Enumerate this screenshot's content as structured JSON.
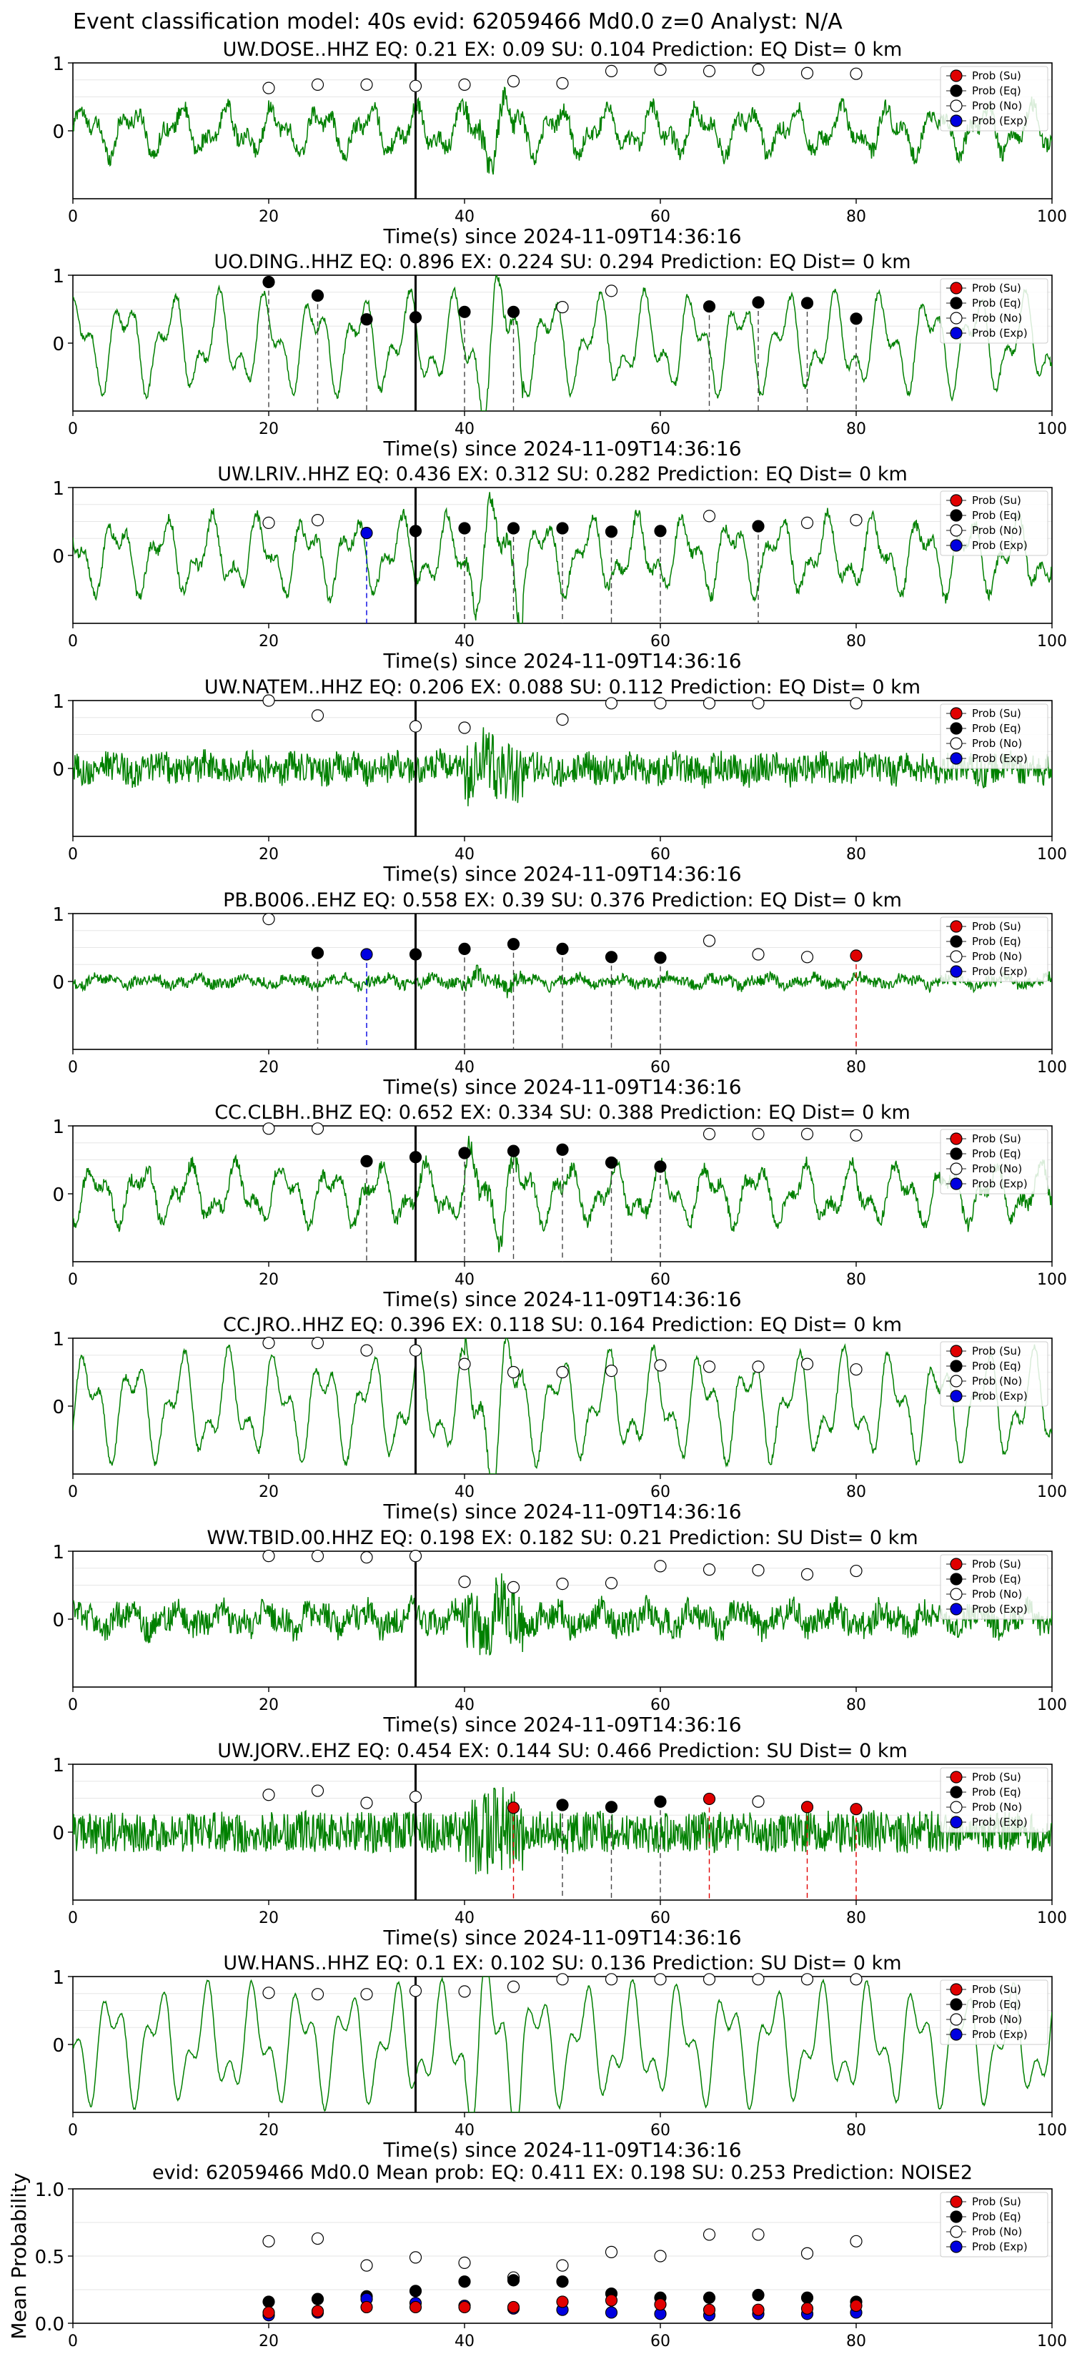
{
  "figure_title": "Event classification model: 40s evid: 62059466 Md0.0 z=0 Analyst: N/A",
  "legend_labels": [
    "Prob (Su)",
    "Prob (Eq)",
    "Prob (No)",
    "Prob (Exp)"
  ],
  "colors": {
    "su": "#e00000",
    "eq": "#000000",
    "no": "#ffffff",
    "exp": "#0000e0",
    "waveform": "#008000",
    "grid": "#e6e6e6"
  },
  "chart_data": [
    {
      "type": "line",
      "station": "UW.DOSE..HHZ",
      "title": "UW.DOSE..HHZ   EQ: 0.21  EX: 0.09  SU: 0.104   Prediction: EQ    Dist= 0 km",
      "xlabel": "Time(s) since 2024-11-09T14:36:16",
      "xlim": [
        0,
        100
      ],
      "ylim": [
        -1,
        1
      ],
      "x_ticks": [
        "0",
        "20",
        "40",
        "60",
        "80",
        "100"
      ],
      "y_ticks": [
        "1",
        "0"
      ],
      "arrival_line_x": 35,
      "noise": 0.12,
      "wave_amp": 0.25,
      "points": [
        {
          "x": 20,
          "y": 0.63,
          "class": "no"
        },
        {
          "x": 25,
          "y": 0.68,
          "class": "no"
        },
        {
          "x": 30,
          "y": 0.68,
          "class": "no"
        },
        {
          "x": 35,
          "y": 0.66,
          "class": "no"
        },
        {
          "x": 40,
          "y": 0.68,
          "class": "no"
        },
        {
          "x": 45,
          "y": 0.73,
          "class": "no"
        },
        {
          "x": 50,
          "y": 0.7,
          "class": "no"
        },
        {
          "x": 55,
          "y": 0.88,
          "class": "no"
        },
        {
          "x": 60,
          "y": 0.9,
          "class": "no"
        },
        {
          "x": 65,
          "y": 0.88,
          "class": "no"
        },
        {
          "x": 70,
          "y": 0.9,
          "class": "no"
        },
        {
          "x": 75,
          "y": 0.85,
          "class": "no"
        },
        {
          "x": 80,
          "y": 0.84,
          "class": "no"
        }
      ]
    },
    {
      "type": "line",
      "station": "UO.DING..HHZ",
      "title": "UO.DING..HHZ   EQ: 0.896  EX: 0.224  SU: 0.294   Prediction: EQ    Dist= 0 km",
      "xlabel": "Time(s) since 2024-11-09T14:36:16",
      "xlim": [
        0,
        100
      ],
      "ylim": [
        -1,
        1
      ],
      "x_ticks": [
        "0",
        "20",
        "40",
        "60",
        "80",
        "100"
      ],
      "y_ticks": [
        "1",
        "0"
      ],
      "arrival_line_x": 35,
      "noise": 0.05,
      "wave_amp": 0.5,
      "points": [
        {
          "x": 20,
          "y": 0.9,
          "class": "eq"
        },
        {
          "x": 25,
          "y": 0.7,
          "class": "eq"
        },
        {
          "x": 30,
          "y": 0.35,
          "class": "eq"
        },
        {
          "x": 35,
          "y": 0.38,
          "class": "eq"
        },
        {
          "x": 40,
          "y": 0.46,
          "class": "eq"
        },
        {
          "x": 45,
          "y": 0.46,
          "class": "eq"
        },
        {
          "x": 50,
          "y": 0.53,
          "class": "no"
        },
        {
          "x": 55,
          "y": 0.77,
          "class": "no"
        },
        {
          "x": 65,
          "y": 0.54,
          "class": "eq"
        },
        {
          "x": 70,
          "y": 0.6,
          "class": "eq"
        },
        {
          "x": 75,
          "y": 0.59,
          "class": "eq"
        },
        {
          "x": 80,
          "y": 0.36,
          "class": "eq"
        }
      ]
    },
    {
      "type": "line",
      "station": "UW.LRIV..HHZ",
      "title": "UW.LRIV..HHZ   EQ: 0.436  EX: 0.312  SU: 0.282   Prediction: EQ    Dist= 0 km",
      "xlabel": "Time(s) since 2024-11-09T14:36:16",
      "xlim": [
        0,
        100
      ],
      "ylim": [
        -1,
        1
      ],
      "x_ticks": [
        "0",
        "20",
        "40",
        "60",
        "80",
        "100"
      ],
      "y_ticks": [
        "1",
        "0"
      ],
      "arrival_line_x": 35,
      "noise": 0.08,
      "wave_amp": 0.4,
      "points": [
        {
          "x": 20,
          "y": 0.48,
          "class": "no"
        },
        {
          "x": 25,
          "y": 0.52,
          "class": "no"
        },
        {
          "x": 30,
          "y": 0.33,
          "class": "exp"
        },
        {
          "x": 35,
          "y": 0.36,
          "class": "eq"
        },
        {
          "x": 40,
          "y": 0.4,
          "class": "eq"
        },
        {
          "x": 45,
          "y": 0.4,
          "class": "eq"
        },
        {
          "x": 50,
          "y": 0.4,
          "class": "eq"
        },
        {
          "x": 55,
          "y": 0.35,
          "class": "eq"
        },
        {
          "x": 60,
          "y": 0.36,
          "class": "eq"
        },
        {
          "x": 65,
          "y": 0.58,
          "class": "no"
        },
        {
          "x": 70,
          "y": 0.43,
          "class": "eq"
        },
        {
          "x": 75,
          "y": 0.48,
          "class": "no"
        },
        {
          "x": 80,
          "y": 0.52,
          "class": "no"
        }
      ]
    },
    {
      "type": "line",
      "station": "UW.NATEM..HHZ",
      "title": "UW.NATEM..HHZ   EQ: 0.206  EX: 0.088  SU: 0.112   Prediction: EQ    Dist= 0 km",
      "xlabel": "Time(s) since 2024-11-09T14:36:16",
      "xlim": [
        0,
        100
      ],
      "ylim": [
        -1,
        1
      ],
      "x_ticks": [
        "0",
        "20",
        "40",
        "60",
        "80",
        "100"
      ],
      "y_ticks": [
        "1",
        "0"
      ],
      "arrival_line_x": 35,
      "noise": 0.22,
      "wave_amp": 0.05,
      "points": [
        {
          "x": 20,
          "y": 1.0,
          "class": "no"
        },
        {
          "x": 25,
          "y": 0.78,
          "class": "no"
        },
        {
          "x": 35,
          "y": 0.62,
          "class": "no"
        },
        {
          "x": 40,
          "y": 0.6,
          "class": "no"
        },
        {
          "x": 50,
          "y": 0.72,
          "class": "no"
        },
        {
          "x": 55,
          "y": 0.96,
          "class": "no"
        },
        {
          "x": 60,
          "y": 0.96,
          "class": "no"
        },
        {
          "x": 65,
          "y": 0.96,
          "class": "no"
        },
        {
          "x": 70,
          "y": 0.96,
          "class": "no"
        },
        {
          "x": 80,
          "y": 0.96,
          "class": "no"
        }
      ]
    },
    {
      "type": "line",
      "station": "PB.B006..EHZ",
      "title": "PB.B006..EHZ   EQ: 0.558  EX: 0.39  SU: 0.376   Prediction: EQ    Dist= 0 km",
      "xlabel": "Time(s) since 2024-11-09T14:36:16",
      "xlim": [
        0,
        100
      ],
      "ylim": [
        -1,
        1
      ],
      "x_ticks": [
        "0",
        "20",
        "40",
        "60",
        "80",
        "100"
      ],
      "y_ticks": [
        "1",
        "0"
      ],
      "arrival_line_x": 35,
      "noise": 0.08,
      "wave_amp": 0.05,
      "points": [
        {
          "x": 20,
          "y": 0.92,
          "class": "no"
        },
        {
          "x": 25,
          "y": 0.42,
          "class": "eq"
        },
        {
          "x": 30,
          "y": 0.4,
          "class": "exp"
        },
        {
          "x": 35,
          "y": 0.4,
          "class": "eq"
        },
        {
          "x": 40,
          "y": 0.48,
          "class": "eq"
        },
        {
          "x": 45,
          "y": 0.55,
          "class": "eq"
        },
        {
          "x": 50,
          "y": 0.48,
          "class": "eq"
        },
        {
          "x": 55,
          "y": 0.36,
          "class": "eq"
        },
        {
          "x": 60,
          "y": 0.35,
          "class": "eq"
        },
        {
          "x": 65,
          "y": 0.6,
          "class": "no"
        },
        {
          "x": 70,
          "y": 0.4,
          "class": "no"
        },
        {
          "x": 75,
          "y": 0.36,
          "class": "no"
        },
        {
          "x": 80,
          "y": 0.38,
          "class": "su"
        }
      ]
    },
    {
      "type": "line",
      "station": "CC.CLBH..BHZ",
      "title": "CC.CLBH..BHZ   EQ: 0.652  EX: 0.334  SU: 0.388   Prediction: EQ    Dist= 0 km",
      "xlabel": "Time(s) since 2024-11-09T14:36:16",
      "xlim": [
        0,
        100
      ],
      "ylim": [
        -1,
        1
      ],
      "x_ticks": [
        "0",
        "20",
        "40",
        "60",
        "80",
        "100"
      ],
      "y_ticks": [
        "1",
        "0"
      ],
      "arrival_line_x": 35,
      "noise": 0.1,
      "wave_amp": 0.3,
      "points": [
        {
          "x": 20,
          "y": 0.96,
          "class": "no"
        },
        {
          "x": 25,
          "y": 0.96,
          "class": "no"
        },
        {
          "x": 30,
          "y": 0.48,
          "class": "eq"
        },
        {
          "x": 35,
          "y": 0.54,
          "class": "eq"
        },
        {
          "x": 40,
          "y": 0.6,
          "class": "eq"
        },
        {
          "x": 45,
          "y": 0.63,
          "class": "eq"
        },
        {
          "x": 50,
          "y": 0.65,
          "class": "eq"
        },
        {
          "x": 55,
          "y": 0.46,
          "class": "eq"
        },
        {
          "x": 60,
          "y": 0.4,
          "class": "eq"
        },
        {
          "x": 65,
          "y": 0.88,
          "class": "no"
        },
        {
          "x": 70,
          "y": 0.88,
          "class": "no"
        },
        {
          "x": 75,
          "y": 0.88,
          "class": "no"
        },
        {
          "x": 80,
          "y": 0.86,
          "class": "no"
        }
      ]
    },
    {
      "type": "line",
      "station": "CC.JRO..HHZ",
      "title": "CC.JRO..HHZ   EQ: 0.396  EX: 0.118  SU: 0.164   Prediction: EQ    Dist= 0 km",
      "xlabel": "Time(s) since 2024-11-09T14:36:16",
      "xlim": [
        0,
        100
      ],
      "ylim": [
        -1,
        1
      ],
      "x_ticks": [
        "0",
        "20",
        "40",
        "60",
        "80",
        "100"
      ],
      "y_ticks": [
        "1",
        "0"
      ],
      "arrival_line_x": 35,
      "noise": 0.05,
      "wave_amp": 0.55,
      "points": [
        {
          "x": 20,
          "y": 0.93,
          "class": "no"
        },
        {
          "x": 25,
          "y": 0.93,
          "class": "no"
        },
        {
          "x": 30,
          "y": 0.82,
          "class": "no"
        },
        {
          "x": 35,
          "y": 0.82,
          "class": "no"
        },
        {
          "x": 40,
          "y": 0.62,
          "class": "no"
        },
        {
          "x": 45,
          "y": 0.5,
          "class": "no"
        },
        {
          "x": 50,
          "y": 0.5,
          "class": "no"
        },
        {
          "x": 55,
          "y": 0.52,
          "class": "no"
        },
        {
          "x": 60,
          "y": 0.6,
          "class": "no"
        },
        {
          "x": 65,
          "y": 0.58,
          "class": "no"
        },
        {
          "x": 70,
          "y": 0.58,
          "class": "no"
        },
        {
          "x": 75,
          "y": 0.62,
          "class": "no"
        },
        {
          "x": 80,
          "y": 0.54,
          "class": "no"
        }
      ]
    },
    {
      "type": "line",
      "station": "WW.TBID.00.HHZ",
      "title": "WW.TBID.00.HHZ   EQ: 0.198  EX: 0.182  SU: 0.21   Prediction: SU    Dist= 0 km",
      "xlabel": "Time(s) since 2024-11-09T14:36:16",
      "xlim": [
        0,
        100
      ],
      "ylim": [
        -1,
        1
      ],
      "x_ticks": [
        "0",
        "20",
        "40",
        "60",
        "80",
        "100"
      ],
      "y_ticks": [
        "1",
        "0"
      ],
      "arrival_line_x": 35,
      "noise": 0.2,
      "wave_amp": 0.1,
      "points": [
        {
          "x": 20,
          "y": 0.93,
          "class": "no"
        },
        {
          "x": 25,
          "y": 0.93,
          "class": "no"
        },
        {
          "x": 30,
          "y": 0.91,
          "class": "no"
        },
        {
          "x": 35,
          "y": 0.93,
          "class": "no"
        },
        {
          "x": 40,
          "y": 0.55,
          "class": "no"
        },
        {
          "x": 45,
          "y": 0.47,
          "class": "no"
        },
        {
          "x": 50,
          "y": 0.52,
          "class": "no"
        },
        {
          "x": 55,
          "y": 0.53,
          "class": "no"
        },
        {
          "x": 60,
          "y": 0.78,
          "class": "no"
        },
        {
          "x": 65,
          "y": 0.73,
          "class": "no"
        },
        {
          "x": 70,
          "y": 0.72,
          "class": "no"
        },
        {
          "x": 75,
          "y": 0.66,
          "class": "no"
        },
        {
          "x": 80,
          "y": 0.71,
          "class": "no"
        }
      ]
    },
    {
      "type": "line",
      "station": "UW.JORV..EHZ",
      "title": "UW.JORV..EHZ   EQ: 0.454  EX: 0.144  SU: 0.466   Prediction: SU    Dist= 0 km",
      "xlabel": "Time(s) since 2024-11-09T14:36:16",
      "xlim": [
        0,
        100
      ],
      "ylim": [
        -1,
        1
      ],
      "x_ticks": [
        "0",
        "20",
        "40",
        "60",
        "80",
        "100"
      ],
      "y_ticks": [
        "1",
        "0"
      ],
      "arrival_line_x": 35,
      "noise": 0.3,
      "wave_amp": 0.02,
      "points": [
        {
          "x": 20,
          "y": 0.55,
          "class": "no"
        },
        {
          "x": 25,
          "y": 0.61,
          "class": "no"
        },
        {
          "x": 30,
          "y": 0.43,
          "class": "no"
        },
        {
          "x": 35,
          "y": 0.52,
          "class": "no"
        },
        {
          "x": 45,
          "y": 0.36,
          "class": "su"
        },
        {
          "x": 50,
          "y": 0.4,
          "class": "eq"
        },
        {
          "x": 55,
          "y": 0.37,
          "class": "eq"
        },
        {
          "x": 60,
          "y": 0.45,
          "class": "eq"
        },
        {
          "x": 65,
          "y": 0.49,
          "class": "su"
        },
        {
          "x": 70,
          "y": 0.45,
          "class": "no"
        },
        {
          "x": 75,
          "y": 0.37,
          "class": "su"
        },
        {
          "x": 80,
          "y": 0.34,
          "class": "su"
        }
      ]
    },
    {
      "type": "line",
      "station": "UW.HANS..HHZ",
      "title": "UW.HANS..HHZ   EQ: 0.1  EX: 0.102  SU: 0.136   Prediction: SU    Dist= 0 km",
      "xlabel": "Time(s) since 2024-11-09T14:36:16",
      "xlim": [
        0,
        100
      ],
      "ylim": [
        -1,
        1
      ],
      "x_ticks": [
        "0",
        "20",
        "40",
        "60",
        "80",
        "100"
      ],
      "y_ticks": [
        "1",
        "0"
      ],
      "arrival_line_x": 35,
      "noise": 0.02,
      "wave_amp": 0.6,
      "points": [
        {
          "x": 20,
          "y": 0.76,
          "class": "no"
        },
        {
          "x": 25,
          "y": 0.74,
          "class": "no"
        },
        {
          "x": 30,
          "y": 0.74,
          "class": "no"
        },
        {
          "x": 35,
          "y": 0.79,
          "class": "no"
        },
        {
          "x": 40,
          "y": 0.78,
          "class": "no"
        },
        {
          "x": 45,
          "y": 0.85,
          "class": "no"
        },
        {
          "x": 50,
          "y": 0.96,
          "class": "no"
        },
        {
          "x": 55,
          "y": 0.96,
          "class": "no"
        },
        {
          "x": 60,
          "y": 0.96,
          "class": "no"
        },
        {
          "x": 65,
          "y": 0.96,
          "class": "no"
        },
        {
          "x": 70,
          "y": 0.96,
          "class": "no"
        },
        {
          "x": 75,
          "y": 0.96,
          "class": "no"
        },
        {
          "x": 80,
          "y": 0.96,
          "class": "no"
        }
      ]
    },
    {
      "type": "scatter",
      "station": "mean",
      "title": "evid: 62059466  Md0.0   Mean prob:   EQ: 0.411  EX: 0.198  SU: 0.253   Prediction: NOISE2",
      "ylabel": "Mean Probability",
      "xlim": [
        0,
        100
      ],
      "ylim": [
        0,
        1
      ],
      "x_ticks": [
        "0",
        "20",
        "40",
        "60",
        "80",
        "100"
      ],
      "y_ticks": [
        "1.0",
        "0.5",
        "0.0"
      ],
      "series": [
        {
          "name": "Prob (Su)",
          "class": "su",
          "x": [
            20,
            25,
            30,
            35,
            40,
            45,
            50,
            55,
            60,
            65,
            70,
            75,
            80
          ],
          "values": [
            0.08,
            0.09,
            0.12,
            0.12,
            0.12,
            0.12,
            0.16,
            0.17,
            0.14,
            0.1,
            0.1,
            0.11,
            0.13
          ]
        },
        {
          "name": "Prob (Eq)",
          "class": "eq",
          "x": [
            20,
            25,
            30,
            35,
            40,
            45,
            50,
            55,
            60,
            65,
            70,
            75,
            80
          ],
          "values": [
            0.16,
            0.18,
            0.2,
            0.24,
            0.31,
            0.32,
            0.31,
            0.22,
            0.19,
            0.19,
            0.21,
            0.19,
            0.16
          ]
        },
        {
          "name": "Prob (No)",
          "class": "no",
          "x": [
            20,
            25,
            30,
            35,
            40,
            45,
            50,
            55,
            60,
            65,
            70,
            75,
            80
          ],
          "values": [
            0.61,
            0.63,
            0.43,
            0.49,
            0.45,
            0.34,
            0.43,
            0.53,
            0.5,
            0.66,
            0.66,
            0.52,
            0.61
          ]
        },
        {
          "name": "Prob (Exp)",
          "class": "exp",
          "x": [
            20,
            25,
            30,
            35,
            40,
            45,
            50,
            55,
            60,
            65,
            70,
            75,
            80
          ],
          "values": [
            0.06,
            0.08,
            0.18,
            0.15,
            0.13,
            0.11,
            0.1,
            0.08,
            0.07,
            0.06,
            0.07,
            0.07,
            0.08
          ]
        }
      ]
    }
  ]
}
